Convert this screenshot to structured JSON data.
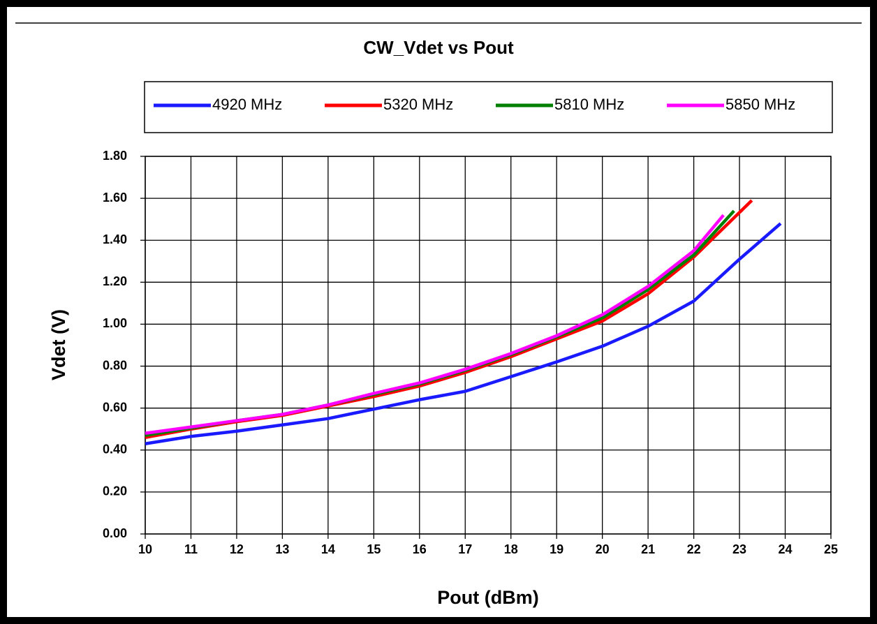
{
  "chart_data": {
    "type": "line",
    "title": "CW_Vdet vs Pout",
    "xlabel": "Pout (dBm)",
    "ylabel": "Vdet (V)",
    "xlim": [
      10,
      25
    ],
    "xticks": [
      10,
      11,
      12,
      13,
      14,
      15,
      16,
      17,
      18,
      19,
      20,
      21,
      22,
      23,
      24,
      25
    ],
    "ylim": [
      0,
      1.8
    ],
    "yticks": [
      {
        "value": 0,
        "label": "0.00"
      },
      {
        "value": 0.2,
        "label": "0.20"
      },
      {
        "value": 0.4,
        "label": "0.40"
      },
      {
        "value": 0.6,
        "label": "0.60"
      },
      {
        "value": 0.8,
        "label": "0.80"
      },
      {
        "value": 1.0,
        "label": "1.00"
      },
      {
        "value": 1.2,
        "label": "1.20"
      },
      {
        "value": 1.4,
        "label": "1.40"
      },
      {
        "value": 1.6,
        "label": "1.60"
      },
      {
        "value": 1.8,
        "label": "1.80"
      }
    ],
    "grid": true,
    "legend": "top",
    "series": [
      {
        "name": "4920 MHz",
        "color": "#1a1aff",
        "x": [
          10,
          11,
          12,
          13,
          14,
          15,
          16,
          17,
          18,
          19,
          20,
          21,
          22,
          23,
          23.9
        ],
        "values": [
          0.43,
          0.465,
          0.49,
          0.52,
          0.55,
          0.595,
          0.64,
          0.68,
          0.75,
          0.82,
          0.895,
          0.99,
          1.11,
          1.31,
          1.48
        ]
      },
      {
        "name": "5320 MHz",
        "color": "#ff0000",
        "x": [
          10,
          11,
          12,
          13,
          14,
          15,
          16,
          17,
          18,
          19,
          20,
          21,
          22,
          23.27
        ],
        "values": [
          0.46,
          0.5,
          0.535,
          0.565,
          0.61,
          0.655,
          0.705,
          0.77,
          0.845,
          0.93,
          1.015,
          1.145,
          1.32,
          1.59
        ]
      },
      {
        "name": "5810 MHz",
        "color": "#008000",
        "x": [
          10,
          11,
          12,
          13,
          14,
          15,
          16,
          17,
          18,
          19,
          20,
          21,
          22,
          22.88
        ],
        "values": [
          0.47,
          0.505,
          0.54,
          0.57,
          0.615,
          0.665,
          0.715,
          0.78,
          0.855,
          0.94,
          1.03,
          1.165,
          1.33,
          1.54
        ]
      },
      {
        "name": "5850 MHz",
        "color": "#ff00ff",
        "x": [
          10,
          11,
          12,
          13,
          14,
          15,
          16,
          17,
          18,
          19,
          20,
          21,
          22,
          22.65
        ],
        "values": [
          0.48,
          0.51,
          0.54,
          0.57,
          0.615,
          0.67,
          0.72,
          0.785,
          0.86,
          0.945,
          1.045,
          1.18,
          1.35,
          1.52
        ]
      }
    ]
  }
}
